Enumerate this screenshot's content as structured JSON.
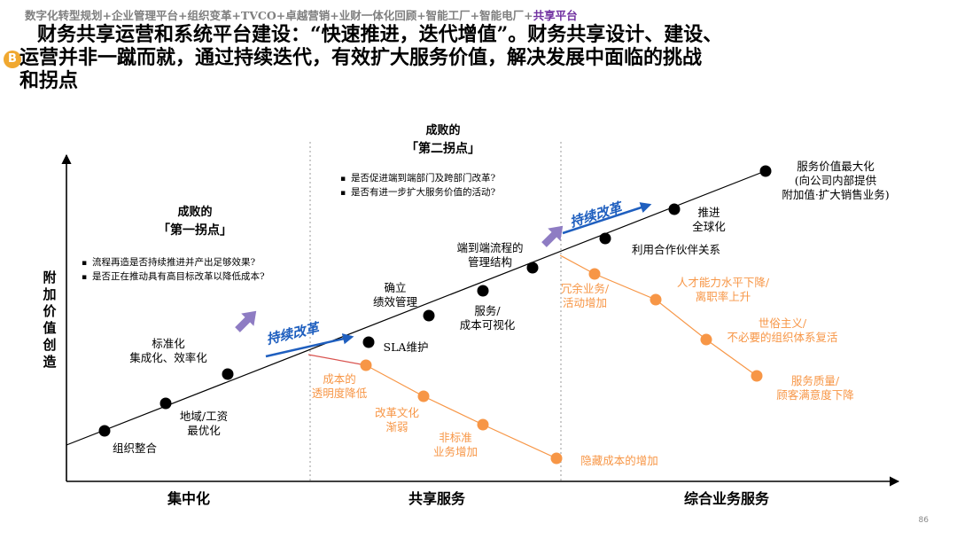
{
  "header": {
    "breadcrumb": "数字化转型规划+企业管理平台+组织变革+TVCO+卓越营销+业财一体化回顾+智能工厂+智能电厂+",
    "breadcrumb_current": "共享平台",
    "badge": "B",
    "title_line1": "财务共享运营和系统平台建设：“快速推进，迭代增值”。财务共享设计、建设、",
    "title_line2": "运营并非一蹴而就，通过持续迭代，有效扩大服务价值，解决发展中面临的挑战",
    "title_line3": "和拐点"
  },
  "colors": {
    "purple": "#7030a0",
    "accent": "#f79646",
    "arrow_blue": "#1f5fbf",
    "arrow_purple": "#8e7cc3"
  },
  "axes": {
    "y_label": [
      "附",
      "加",
      "价",
      "值",
      "创",
      "造"
    ],
    "phases": [
      "集中化",
      "共享服务",
      "综合业务服务"
    ]
  },
  "main_path": {
    "points": [
      {
        "label": "组织整合"
      },
      {
        "label": "地域/工资|最优化"
      },
      {
        "label": "标准化|集成化、效率化"
      },
      {
        "label": "SLA维护"
      },
      {
        "label": "确立|绩效管理"
      },
      {
        "label": "服务/|成本可视化"
      },
      {
        "label": "端到端流程的|管理结构"
      },
      {
        "label": "利用合作伙伴关系"
      },
      {
        "label": "推进|全球化"
      },
      {
        "label": "服务价值最大化|(向公司内部提供|附加值·扩大销售业务)"
      }
    ]
  },
  "branch1": {
    "points": [
      {
        "label": "成本的|透明度降低"
      },
      {
        "label": "改革文化|渐弱"
      },
      {
        "label": "非标准|业务增加"
      },
      {
        "label": "隐藏成本的增加"
      }
    ]
  },
  "branch2": {
    "points": [
      {
        "label": "冗余业务/|活动增加"
      },
      {
        "label": "人才能力水平下降/|离职率上升"
      },
      {
        "label": "世俗主义/|不必要的组织体系复活"
      },
      {
        "label": "服务质量/|顾客满意度下降"
      }
    ]
  },
  "inflection1": {
    "title": "成败的",
    "subtitle": "「第一拐点」",
    "bullets": [
      "流程再造是否持续推进并产出足够效果?",
      "是否正在推动具有高目标改革以降低成本?"
    ]
  },
  "inflection2": {
    "title": "成败的",
    "subtitle": "「第二拐点」",
    "bullets": [
      "是否促进端到端部门及跨部门改革?",
      "是否有进一步扩大服务价值的活动?"
    ]
  },
  "arrow_labels": [
    "持续改革",
    "持续改革"
  ],
  "page_number": "86"
}
